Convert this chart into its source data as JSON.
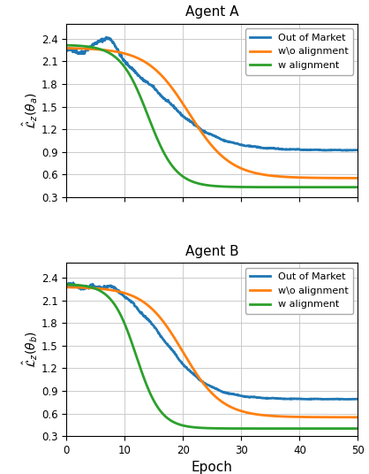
{
  "title_a": "Agent A",
  "title_b": "Agent B",
  "xlabel": "Epoch",
  "ylabel_a": "$\\hat{\\mathcal{L}}_z(\\theta_a)$",
  "ylabel_b": "$\\hat{\\mathcal{L}}_z(\\theta_b)$",
  "xlim": [
    0,
    50
  ],
  "ylim": [
    0.3,
    2.6
  ],
  "yticks": [
    0.3,
    0.6,
    0.9,
    1.2,
    1.5,
    1.8,
    2.1,
    2.4
  ],
  "xticks": [
    0,
    10,
    20,
    30,
    40,
    50
  ],
  "color_oom": "#1f77b4",
  "color_wo": "#ff7f0e",
  "color_w": "#2ca02c",
  "lw": 2.0,
  "legend_labels": [
    "Out of Market",
    "w\\o alignment",
    "w alignment"
  ]
}
